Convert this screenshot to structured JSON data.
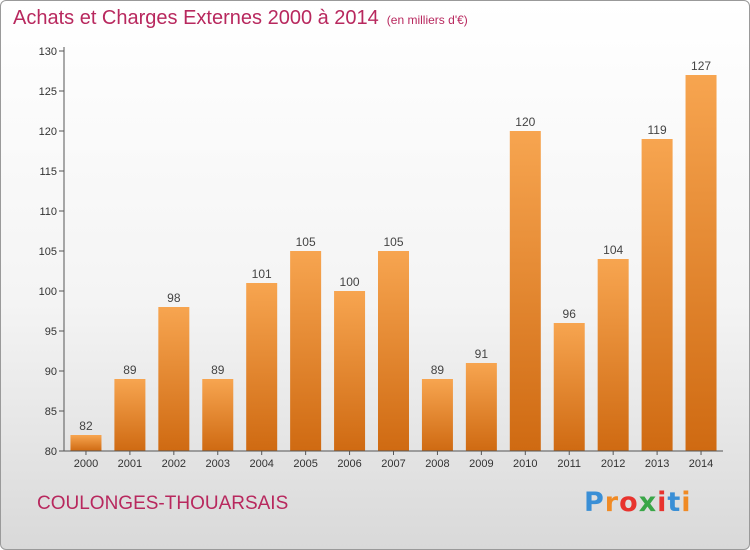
{
  "title": "Achats et Charges Externes 2000 à 2014",
  "subtitle": "(en milliers d'€)",
  "city": "COULONGES-THOUARSAIS",
  "logo": {
    "letters": [
      "P",
      "r",
      "o",
      "x",
      "i",
      "t",
      "i"
    ],
    "colors": [
      "#3a8fd6",
      "#f08a24",
      "#e8332e",
      "#3aa648",
      "#e8332e",
      "#3a8fd6",
      "#f08a24"
    ]
  },
  "chart_data": {
    "type": "bar",
    "title": "Achats et Charges Externes 2000 à 2014",
    "subtitle": "(en milliers d'€)",
    "categories": [
      "2000",
      "2001",
      "2002",
      "2003",
      "2004",
      "2005",
      "2006",
      "2007",
      "2008",
      "2009",
      "2010",
      "2011",
      "2012",
      "2013",
      "2014"
    ],
    "values": [
      82,
      89,
      98,
      89,
      101,
      105,
      100,
      105,
      89,
      91,
      120,
      96,
      104,
      119,
      127
    ],
    "ylim": [
      80,
      130
    ],
    "yticks": [
      80,
      85,
      90,
      95,
      100,
      105,
      110,
      115,
      120,
      125,
      130
    ],
    "grid": false,
    "bar_color": "#f08a24"
  }
}
